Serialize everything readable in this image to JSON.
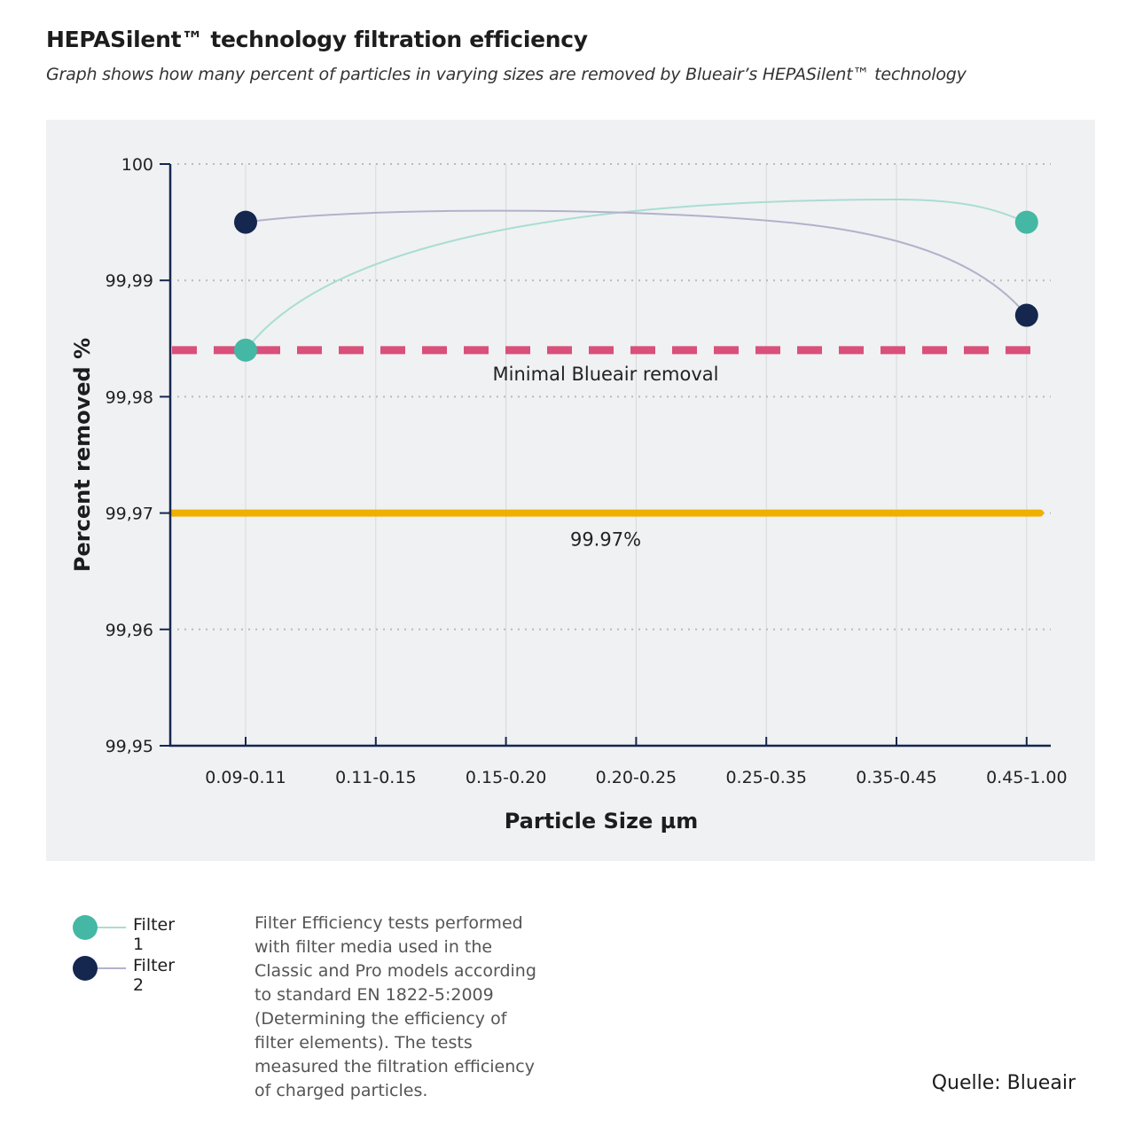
{
  "title": "HEPASilent™ technology filtration efficiency",
  "subtitle": "Graph shows how many percent of particles in varying sizes are removed by Blueair’s HEPASilent™ technology",
  "chart_data": {
    "type": "line",
    "xlabel": "Particle Size µm",
    "ylabel": "Percent removed %",
    "categories": [
      "0.09-0.11",
      "0.11-0.15",
      "0.15-0.20",
      "0.20-0.25",
      "0.25-0.35",
      "0.35-0.45",
      "0.45-1.00"
    ],
    "ylim": [
      99.95,
      100
    ],
    "yticks": [
      99.95,
      99.96,
      99.97,
      99.98,
      99.99,
      100
    ],
    "ytick_labels": [
      "99,95",
      "99,96",
      "99,97",
      "99,98",
      "99,99",
      "100"
    ],
    "grid": true,
    "series": [
      {
        "name": "Filter 1",
        "color": "#44b8a4",
        "line_color": "#a9ddd3",
        "points": [
          {
            "x": "0.09-0.11",
            "y": 99.984
          },
          {
            "x": "0.45-1.00",
            "y": 99.995
          }
        ]
      },
      {
        "name": "Filter 2",
        "color": "#15274f",
        "line_color": "#b2b1cc",
        "points": [
          {
            "x": "0.09-0.11",
            "y": 99.995
          },
          {
            "x": "0.45-1.00",
            "y": 99.987
          }
        ]
      }
    ],
    "reference_lines": [
      {
        "label": "Minimal Blueair removal",
        "y": 99.984,
        "style": "dashed",
        "color": "#d9507a"
      },
      {
        "label": "99.97%",
        "y": 99.97,
        "style": "solid",
        "color": "#f0b000"
      }
    ],
    "background": "#f0f1f3"
  },
  "note": "Filter Efficiency tests performed with filter media used in the Classic and Pro models according to standard EN 1822-5:2009 (Determining the efficiency of filter elements). The tests measured the filtration efficiency of charged particles.",
  "source": "Quelle: Blueair"
}
